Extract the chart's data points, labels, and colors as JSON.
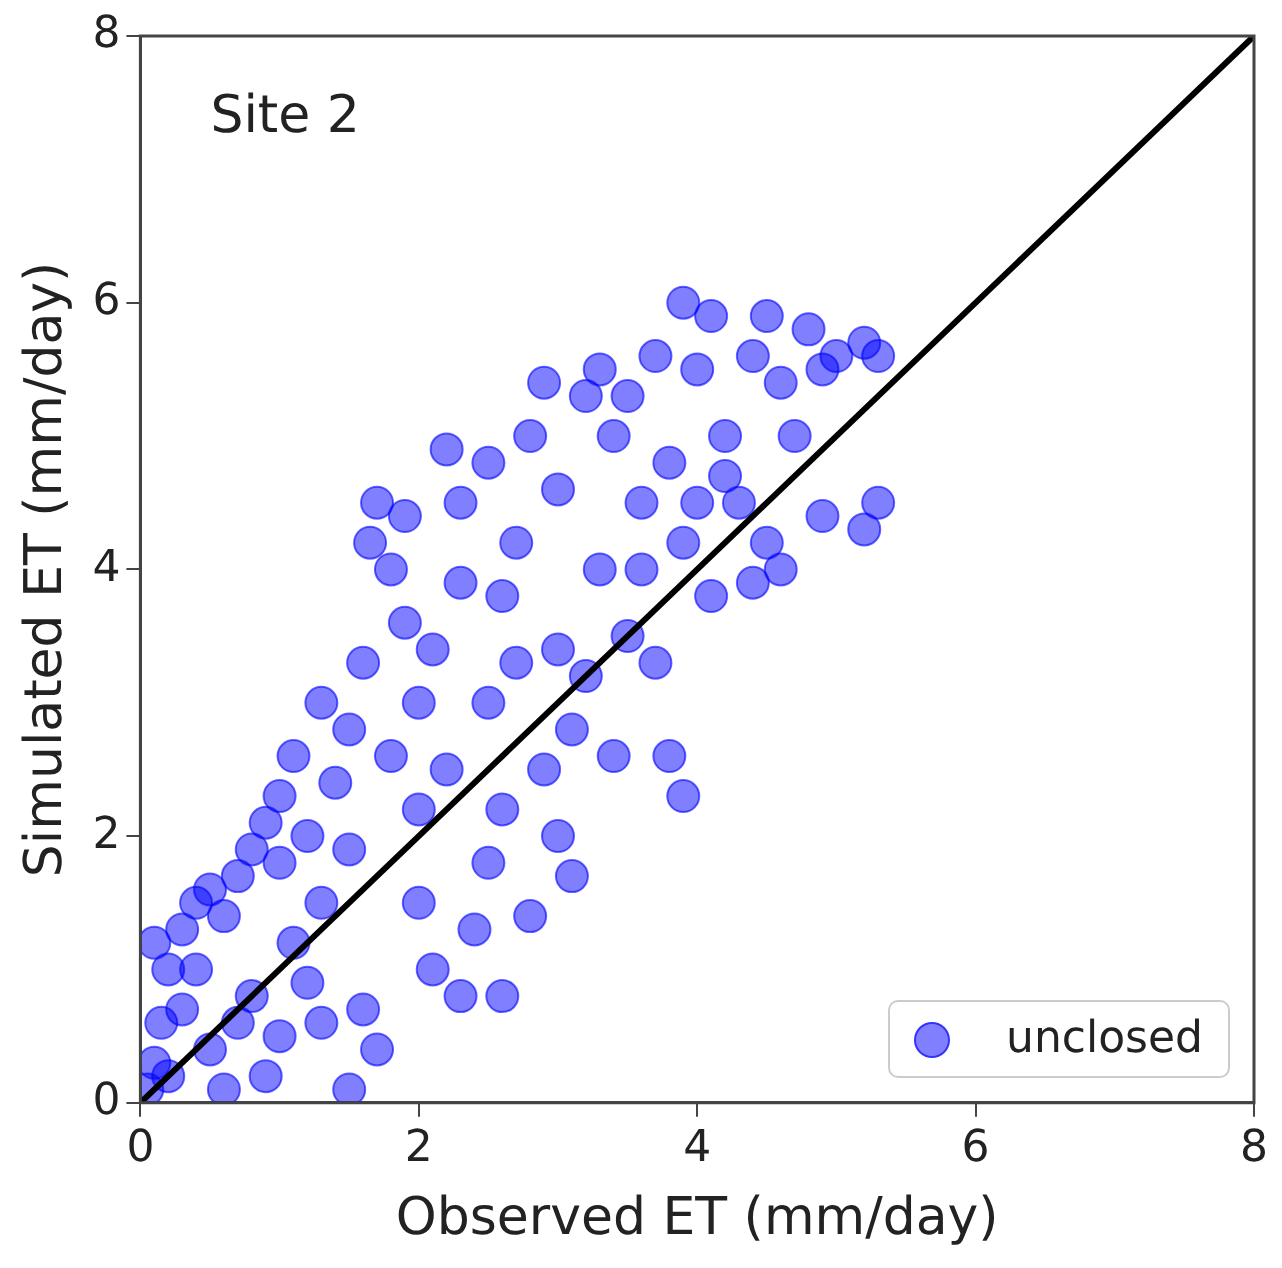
{
  "chart_data": {
    "type": "scatter",
    "xlabel": "Observed ET (mm/day)",
    "ylabel": "Simulated ET (mm/day)",
    "annotations": [
      "Site 2"
    ],
    "xlim": [
      0,
      8
    ],
    "ylim": [
      0,
      8
    ],
    "xticks": [
      0,
      2,
      4,
      6,
      8
    ],
    "yticks": [
      0,
      2,
      4,
      6,
      8
    ],
    "grid": false,
    "legend": "bottom right",
    "series": [
      {
        "name": "unclosed",
        "marker": "circle",
        "color": "#0000ff",
        "x": [
          0.05,
          0.1,
          0.15,
          0.2,
          0.1,
          0.3,
          0.4,
          0.5,
          0.6,
          0.7,
          0.8,
          0.9,
          1.0,
          1.0,
          1.1,
          0.3,
          0.5,
          0.6,
          0.8,
          1.0,
          1.2,
          0.9,
          1.3,
          1.5,
          1.6,
          1.7,
          1.1,
          1.3,
          1.2,
          1.4,
          1.5,
          1.3,
          1.6,
          1.7,
          1.65,
          1.8,
          1.9,
          1.8,
          2.0,
          2.1,
          2.2,
          2.3,
          2.2,
          2.0,
          2.1,
          2.3,
          2.5,
          2.4,
          2.6,
          2.8,
          2.6,
          2.5,
          2.6,
          2.7,
          2.5,
          2.8,
          2.9,
          3.0,
          3.0,
          3.1,
          3.1,
          3.0,
          3.3,
          3.4,
          3.3,
          3.2,
          3.5,
          3.6,
          3.5,
          3.7,
          3.8,
          3.9,
          4.0,
          3.9,
          3.7,
          3.8,
          3.9,
          4.1,
          4.2,
          4.1,
          4.3,
          4.4,
          4.5,
          4.6,
          4.5,
          4.7,
          4.8,
          4.9,
          4.6,
          4.9,
          5.0,
          5.2,
          5.3,
          5.2,
          5.3,
          4.4,
          4.2,
          3.4,
          2.9,
          2.3,
          2.0,
          1.5,
          0.7,
          0.4,
          3.6,
          4.0,
          2.7,
          1.9,
          3.2,
          0.2
        ],
        "values": [
          0.1,
          0.3,
          0.6,
          1.0,
          1.2,
          1.3,
          1.5,
          1.6,
          1.4,
          1.7,
          1.9,
          2.1,
          2.3,
          1.8,
          2.6,
          0.7,
          0.4,
          0.1,
          0.8,
          0.5,
          0.9,
          0.2,
          0.6,
          0.1,
          0.7,
          0.4,
          1.2,
          1.5,
          2.0,
          2.4,
          2.8,
          3.0,
          3.3,
          4.5,
          4.2,
          4.0,
          3.6,
          2.6,
          3.0,
          3.4,
          4.9,
          4.5,
          2.5,
          1.5,
          1.0,
          0.8,
          1.8,
          1.3,
          0.8,
          1.4,
          2.2,
          3.0,
          3.8,
          4.2,
          4.8,
          5.0,
          5.4,
          4.6,
          3.4,
          2.8,
          1.7,
          2.0,
          5.5,
          5.0,
          4.0,
          3.2,
          3.5,
          4.5,
          5.3,
          5.6,
          4.8,
          6.0,
          5.5,
          4.2,
          3.3,
          2.6,
          2.3,
          5.9,
          5.0,
          3.8,
          4.5,
          5.6,
          5.9,
          5.4,
          4.2,
          5.0,
          5.8,
          5.5,
          4.0,
          4.4,
          5.6,
          5.7,
          5.6,
          4.3,
          4.5,
          3.9,
          4.7,
          2.6,
          2.5,
          3.9,
          2.2,
          1.9,
          0.6,
          1.0,
          4.0,
          4.5,
          3.3,
          4.4,
          5.3,
          0.2
        ]
      },
      {
        "type": "line",
        "marker": "none",
        "color": "#000000",
        "x": [
          0,
          8
        ],
        "values": [
          0,
          8
        ],
        "line_style": "solid"
      }
    ]
  }
}
